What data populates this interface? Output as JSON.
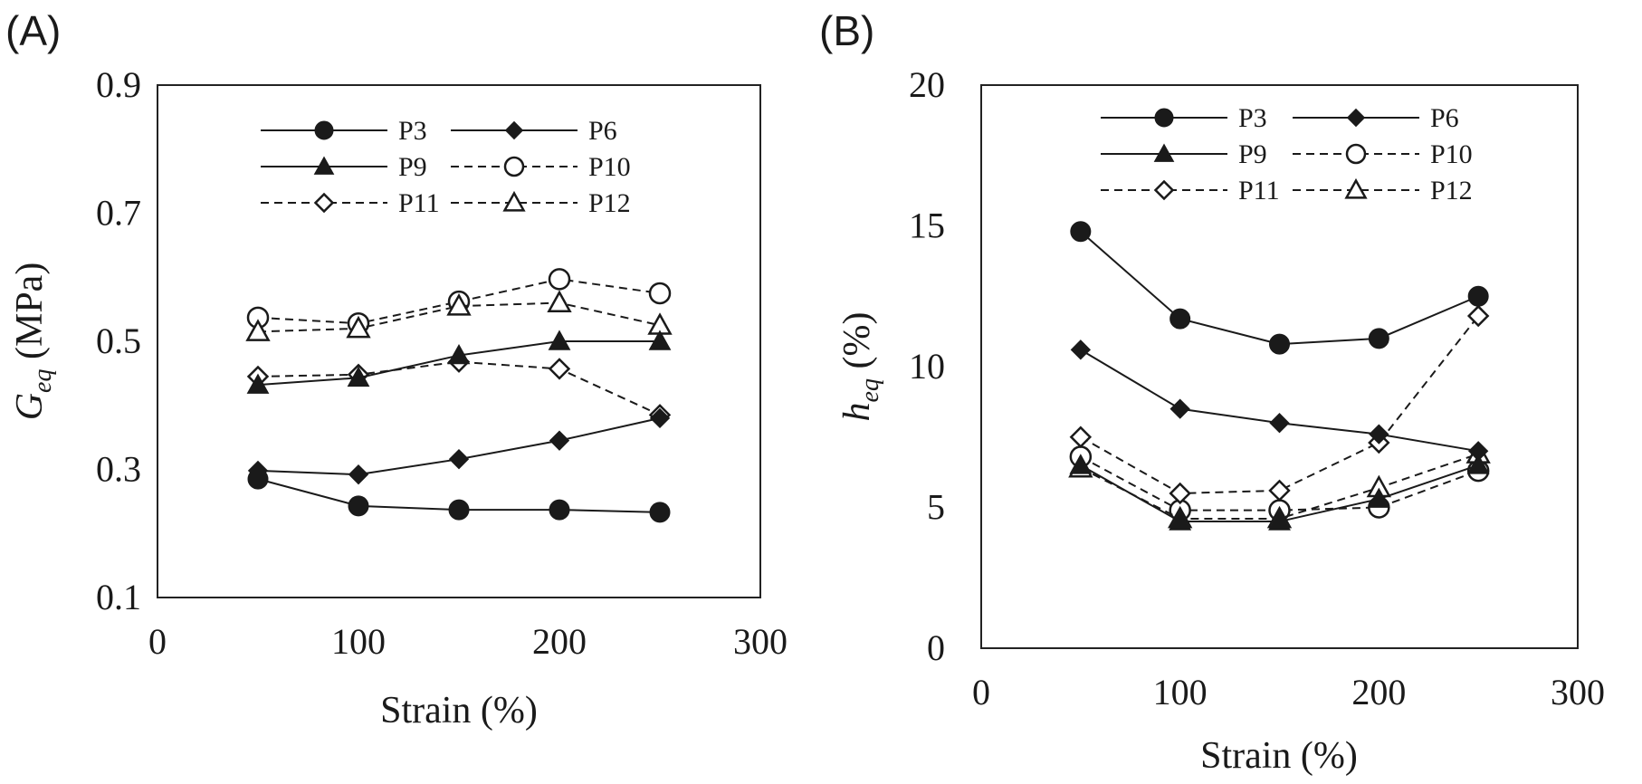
{
  "chart_data": [
    {
      "panel_label": "(A)",
      "type": "line",
      "xlabel": "Strain (%)",
      "ylabel_main": "G",
      "ylabel_sub": "eq",
      "ylabel_unit": "(MPa)",
      "xlim": [
        0,
        300
      ],
      "ylim": [
        0.1,
        0.9
      ],
      "xticks": [
        "0",
        "100",
        "200",
        "300"
      ],
      "xtick_values": [
        0,
        100,
        200,
        300
      ],
      "yticks": [
        "0.1",
        "0.3",
        "0.5",
        "0.7",
        "0.9"
      ],
      "ytick_values": [
        0.1,
        0.3,
        0.5,
        0.7,
        0.9
      ],
      "grid": false,
      "legend_position": "top-right",
      "x": [
        50,
        100,
        150,
        200,
        250
      ],
      "series": [
        {
          "name": "P3",
          "marker": "circle-filled",
          "dashed": false,
          "values": [
            0.285,
            0.243,
            0.237,
            0.237,
            0.233
          ]
        },
        {
          "name": "P6",
          "marker": "diamond-filled",
          "dashed": false,
          "values": [
            0.298,
            0.292,
            0.316,
            0.345,
            0.38
          ]
        },
        {
          "name": "P9",
          "marker": "triangle-filled",
          "dashed": false,
          "values": [
            0.432,
            0.443,
            0.478,
            0.5,
            0.5
          ]
        },
        {
          "name": "P10",
          "marker": "circle-open",
          "dashed": true,
          "values": [
            0.537,
            0.528,
            0.562,
            0.597,
            0.575
          ]
        },
        {
          "name": "P11",
          "marker": "diamond-open",
          "dashed": true,
          "values": [
            0.445,
            0.448,
            0.468,
            0.457,
            0.385
          ]
        },
        {
          "name": "P12",
          "marker": "triangle-open",
          "dashed": true,
          "values": [
            0.515,
            0.52,
            0.555,
            0.56,
            0.525
          ]
        }
      ]
    },
    {
      "panel_label": "(B)",
      "type": "line",
      "xlabel": "Strain (%)",
      "ylabel_main": "h",
      "ylabel_sub": "eq",
      "ylabel_unit": "(%)",
      "xlim": [
        0,
        300
      ],
      "ylim": [
        0,
        20
      ],
      "xticks": [
        "0",
        "100",
        "200",
        "300"
      ],
      "xtick_values": [
        0,
        100,
        200,
        300
      ],
      "yticks": [
        "0",
        "5",
        "10",
        "15",
        "20"
      ],
      "ytick_values": [
        0,
        5,
        10,
        15,
        20
      ],
      "grid": false,
      "legend_position": "top-right",
      "x": [
        50,
        100,
        150,
        200,
        250
      ],
      "series": [
        {
          "name": "P3",
          "marker": "circle-filled",
          "dashed": false,
          "values": [
            14.8,
            11.7,
            10.8,
            11.0,
            12.5
          ]
        },
        {
          "name": "P6",
          "marker": "diamond-filled",
          "dashed": false,
          "values": [
            10.6,
            8.5,
            8.0,
            7.6,
            7.0
          ]
        },
        {
          "name": "P9",
          "marker": "triangle-filled",
          "dashed": false,
          "values": [
            6.5,
            4.5,
            4.5,
            5.3,
            6.5
          ]
        },
        {
          "name": "P10",
          "marker": "circle-open",
          "dashed": true,
          "values": [
            6.8,
            4.9,
            4.9,
            5.0,
            6.3
          ]
        },
        {
          "name": "P11",
          "marker": "diamond-open",
          "dashed": true,
          "values": [
            7.5,
            5.5,
            5.6,
            7.3,
            11.8
          ]
        },
        {
          "name": "P12",
          "marker": "triangle-open",
          "dashed": true,
          "values": [
            6.4,
            4.6,
            4.6,
            5.7,
            6.9
          ]
        }
      ]
    }
  ]
}
